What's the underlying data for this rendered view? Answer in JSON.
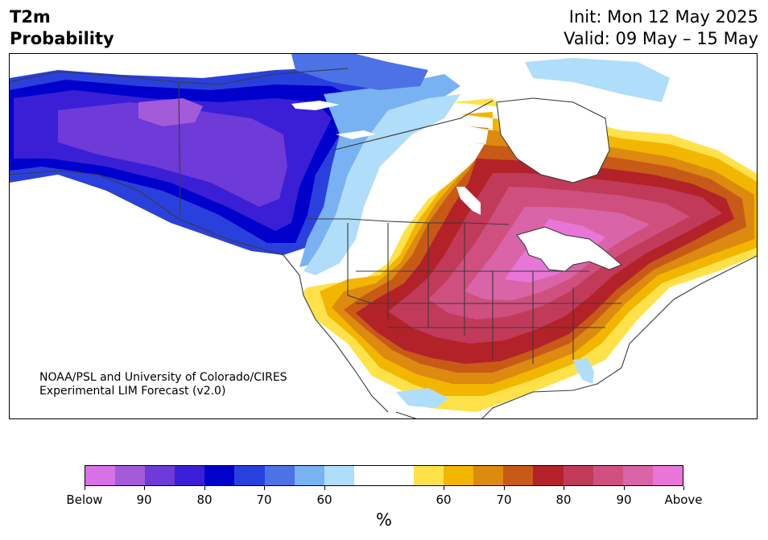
{
  "header": {
    "title_line1": "T2m",
    "title_line2": "Probability",
    "init_text": "Init: Mon 12 May 2025",
    "valid_text": "Valid: 09 May – 15 May"
  },
  "credit": {
    "line1": "NOAA/PSL and University of Colorado/CIRES",
    "line2": "Experimental LIM Forecast (v2.0)"
  },
  "colorbar": {
    "unit": "%",
    "colors": [
      "#d870e8",
      "#a35bd9",
      "#6e3ad8",
      "#3a1fd6",
      "#0000cc",
      "#2a40dc",
      "#4d72e6",
      "#78b2f2",
      "#b0ddfa",
      "#ffffff",
      "#ffffff",
      "#ffe24a",
      "#f2b600",
      "#dd8a10",
      "#c85a18",
      "#b32228",
      "#c23a5a",
      "#cf507e",
      "#d964a8",
      "#e876d8"
    ],
    "labels": [
      {
        "text": "Below",
        "index": 0
      },
      {
        "text": "90",
        "index": 2
      },
      {
        "text": "80",
        "index": 4
      },
      {
        "text": "70",
        "index": 6
      },
      {
        "text": "60",
        "index": 8
      },
      {
        "text": "60",
        "index": 12
      },
      {
        "text": "70",
        "index": 14
      },
      {
        "text": "80",
        "index": 16
      },
      {
        "text": "90",
        "index": 18
      },
      {
        "text": "Above",
        "index": 20
      }
    ]
  }
}
